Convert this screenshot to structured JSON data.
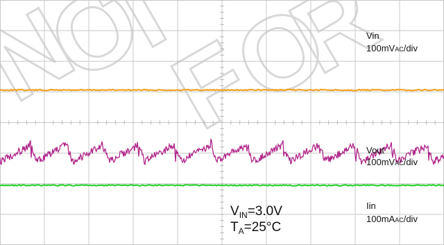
{
  "chart_data": {
    "type": "line",
    "title": "",
    "grid": true,
    "grid_divisions": {
      "x": 10,
      "y": 8
    },
    "series": [
      {
        "name": "Vin",
        "scale": "100mVAC/div",
        "color": "#f0a020",
        "shape": "flat",
        "level_div": 2.94
      },
      {
        "name": "Vout",
        "scale": "100mVAC/div",
        "color": "#b0268a",
        "shape": "ripple",
        "level_div": 5.0,
        "ripple_cycles": 12.3,
        "ripple_div": 0.55
      },
      {
        "name": "Iin",
        "scale": "100mAAC/div",
        "color": "#2bd230",
        "shape": "flat",
        "level_div": 6.05
      }
    ]
  },
  "labels": {
    "vin_name": "Vin",
    "vin_scale_a": "100mV",
    "vin_scale_b": "AC",
    "vin_scale_c": "/div",
    "vout_name": "Vout",
    "vout_scale_a": "100mV",
    "vout_scale_b": "AC",
    "vout_scale_c": "/div",
    "iin_name": "Iin",
    "iin_scale_a": "100mA",
    "iin_scale_b": "AC",
    "iin_scale_c": "/div"
  },
  "conditions": {
    "vin_v": "V",
    "vin_sub": "IN",
    "vin_val": "=3.0V",
    "ta_t": "T",
    "ta_sub": "A",
    "ta_val": "=25°C"
  },
  "watermark": "NOT FOR NEW DESIGN",
  "watermark_color": "#d8d8d8"
}
